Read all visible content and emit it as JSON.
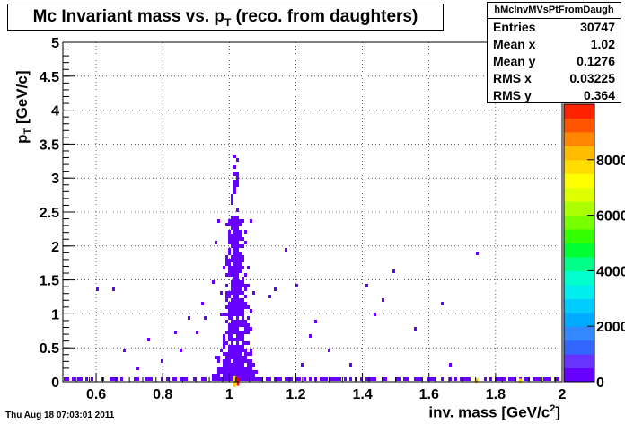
{
  "timestamp": "Thu Aug 18 07:03:01 2011",
  "chart_data": {
    "type": "heatmap",
    "title_main": "Mc Invariant mass vs. p",
    "title_sub": "T",
    "title_tail": " (reco. from daughters)",
    "xlabel_main": "inv. mass [GeV/c",
    "xlabel_sup": "2",
    "xlabel_tail": "]",
    "ylabel_main": "p",
    "ylabel_sub": "T",
    "ylabel_tail": " [GeV/c]",
    "xlim": [
      0.5,
      2.0
    ],
    "ylim": [
      0,
      5
    ],
    "x_ticks": [
      "0.6",
      "0.8",
      "1",
      "1.2",
      "1.4",
      "1.6",
      "1.8",
      "2"
    ],
    "y_ticks": [
      "0",
      "0.5",
      "1",
      "1.5",
      "2",
      "2.5",
      "3",
      "3.5",
      "4",
      "4.5",
      "5"
    ],
    "grid": true,
    "palette_ticks": [
      "0",
      "2000",
      "4000",
      "6000",
      "8000"
    ],
    "palette_max": 10000,
    "stats": {
      "name": "hMcInvMVsPtFromDaugh",
      "rows": [
        {
          "label": "Entries",
          "value": "30747"
        },
        {
          "label": "Mean x",
          "value": "1.02"
        },
        {
          "label": "Mean y",
          "value": "0.1276"
        },
        {
          "label": "RMS x",
          "value": "0.03225"
        },
        {
          "label": "RMS y",
          "value": "0.364"
        }
      ]
    },
    "colors": {
      "low": "#6600ff",
      "peak_low": "#ffcc00",
      "peak": "#ff0000"
    }
  }
}
